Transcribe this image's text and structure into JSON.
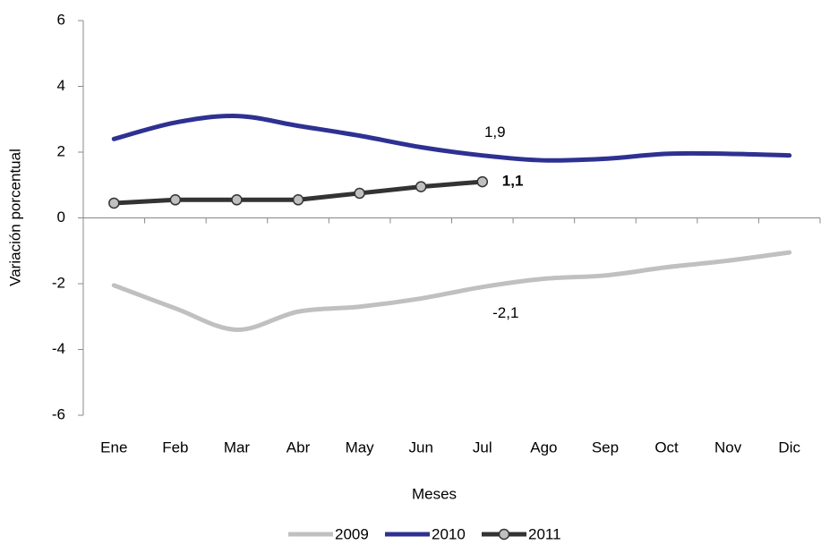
{
  "chart_data": {
    "type": "line",
    "categories": [
      "Ene",
      "Feb",
      "Mar",
      "Abr",
      "May",
      "Jun",
      "Jul",
      "Ago",
      "Sep",
      "Oct",
      "Nov",
      "Dic"
    ],
    "series": [
      {
        "name": "2009",
        "color": "#c0c0c0",
        "smooth": true,
        "markers": false,
        "values": [
          -2.05,
          -2.75,
          -3.4,
          -2.85,
          -2.7,
          -2.45,
          -2.1,
          -1.85,
          -1.75,
          -1.5,
          -1.3,
          -1.05
        ],
        "value_labels": [
          null,
          null,
          null,
          null,
          null,
          null,
          "-2,1",
          null,
          null,
          null,
          null,
          null
        ]
      },
      {
        "name": "2010",
        "color": "#2e3192",
        "smooth": true,
        "markers": false,
        "values": [
          2.4,
          2.9,
          3.1,
          2.8,
          2.5,
          2.15,
          1.9,
          1.75,
          1.8,
          1.95,
          1.95,
          1.9
        ],
        "value_labels": [
          null,
          null,
          null,
          null,
          null,
          null,
          "1,9",
          null,
          null,
          null,
          null,
          null
        ]
      },
      {
        "name": "2011",
        "color": "#333333",
        "smooth": false,
        "markers": true,
        "values": [
          0.45,
          0.55,
          0.55,
          0.55,
          0.75,
          0.95,
          1.1,
          null,
          null,
          null,
          null,
          null
        ],
        "value_labels": [
          null,
          null,
          null,
          null,
          null,
          null,
          "1,1",
          null,
          null,
          null,
          null,
          null
        ]
      }
    ],
    "xlabel": "Meses",
    "ylabel": "Variación porcentual",
    "ylim": [
      -6,
      6
    ],
    "yticks": [
      -6,
      -4,
      -2,
      0,
      2,
      4,
      6
    ],
    "grid": false,
    "legend": "bottom"
  }
}
